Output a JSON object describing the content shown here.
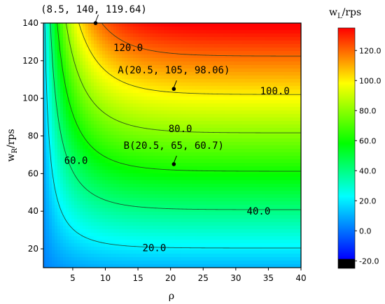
{
  "chart_data": {
    "type": "heatmap",
    "xlabel": "ρ",
    "ylabel": "w",
    "ylabel_sub": "R",
    "ylabel_unit": "/rps",
    "xlim": [
      0.5,
      40
    ],
    "ylim": [
      10,
      140
    ],
    "x_ticks": [
      5,
      10,
      15,
      20,
      25,
      30,
      35,
      40
    ],
    "y_ticks": [
      20,
      40,
      60,
      80,
      100,
      120,
      140
    ],
    "colorbar": {
      "title": "w",
      "title_sub": "L",
      "title_unit": "/rps",
      "range": [
        -25,
        135
      ],
      "ticks": [
        -20.0,
        0.0,
        20.0,
        40.0,
        60.0,
        80.0,
        100.0,
        120.0
      ],
      "tick_labels": [
        "-20.0",
        "0.0",
        "20.0",
        "40.0",
        "60.0",
        "80.0",
        "100.0",
        "120.0"
      ]
    },
    "contours": [
      {
        "level": 20.0,
        "label": "20.0",
        "label_at": [
          17.5,
          20.5
        ]
      },
      {
        "level": 40.0,
        "label": "40.0",
        "label_at": [
          33.5,
          40
        ]
      },
      {
        "level": 60.0,
        "label": "60.0",
        "label_at": [
          5.5,
          67
        ]
      },
      {
        "level": 80.0,
        "label": "80.0",
        "label_at": [
          21.5,
          84
        ]
      },
      {
        "level": 100.0,
        "label": "100.0",
        "label_at": [
          36,
          104
        ]
      },
      {
        "level": 120.0,
        "label": "120.0",
        "label_at": [
          13.5,
          127
        ]
      }
    ],
    "annotations": [
      {
        "label": "(8.5, 140, 119.64)",
        "x": 8.5,
        "y": 140,
        "z": 119.64
      },
      {
        "label": "A(20.5, 105, 98.06)",
        "x": 20.5,
        "y": 105,
        "z": 98.06
      },
      {
        "label": "B(20.5, 65, 60.7)",
        "x": 20.5,
        "y": 65,
        "z": 60.7
      }
    ]
  }
}
